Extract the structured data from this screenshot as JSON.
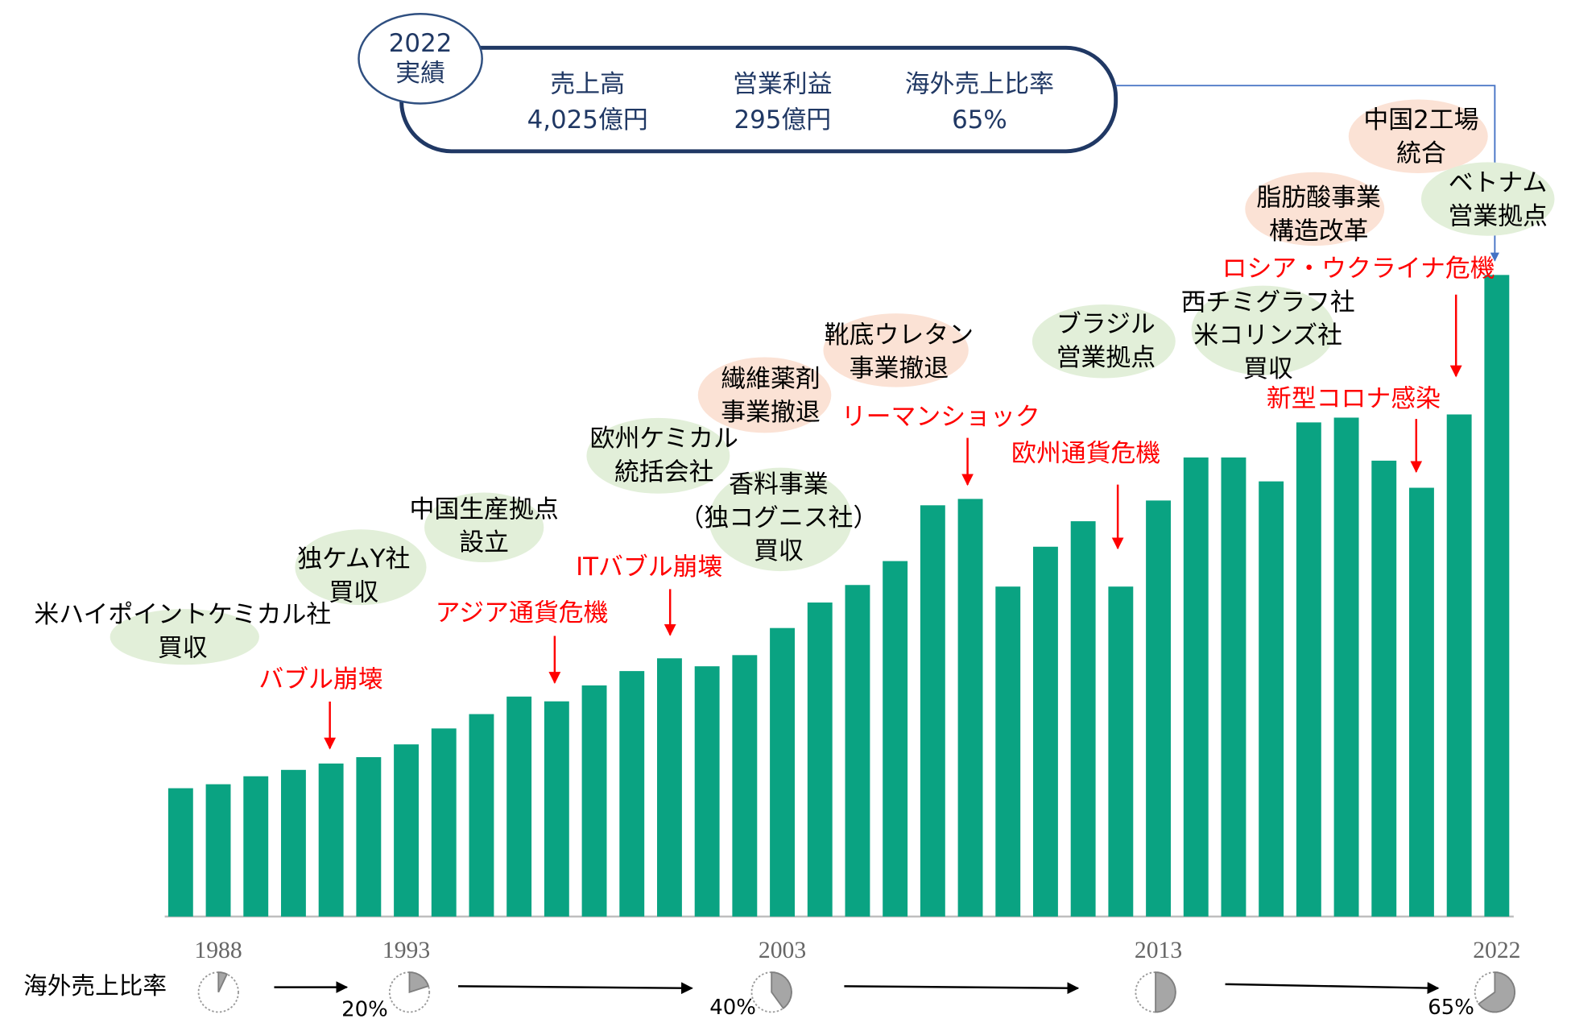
{
  "chart_data": {
    "type": "bar",
    "color": "#0aa382",
    "categories": [
      null,
      "1988",
      null,
      null,
      null,
      null,
      "1993",
      null,
      null,
      null,
      null,
      null,
      null,
      null,
      null,
      null,
      "2003",
      null,
      null,
      null,
      null,
      null,
      null,
      null,
      null,
      null,
      "2013",
      null,
      null,
      null,
      null,
      null,
      null,
      null,
      null,
      "2022"
    ],
    "values": [
      805,
      830,
      880,
      920,
      960,
      1000,
      1080,
      1180,
      1270,
      1380,
      1350,
      1450,
      1540,
      1620,
      1570,
      1640,
      1810,
      1970,
      2080,
      2230,
      2580,
      2620,
      2070,
      2320,
      2480,
      2070,
      2610,
      2880,
      2880,
      2730,
      3100,
      3130,
      2860,
      2690,
      3150,
      4025
    ],
    "ylim": [
      0,
      5750
    ],
    "summary": {
      "badge": [
        "2022",
        "実績"
      ],
      "items": [
        {
          "label": "売上高",
          "value": "4,025億円"
        },
        {
          "label": "営業利益",
          "value": "295億円"
        },
        {
          "label": "海外売上比率",
          "value": "65%"
        }
      ]
    },
    "milestones": [
      {
        "lines": [
          "米ハイポイントケミカル社",
          "買収"
        ],
        "color": "#e2efd9"
      },
      {
        "lines": [
          "独ケムY社",
          "買収"
        ],
        "color": "#e2efd9"
      },
      {
        "lines": [
          "中国生産拠点",
          "設立"
        ],
        "color": "#e2efd9"
      },
      {
        "lines": [
          "欧州ケミカル",
          "統括会社"
        ],
        "color": "#e2efd9"
      },
      {
        "lines": [
          "繊維薬剤",
          "事業撤退"
        ],
        "color": "#fbe2d5"
      },
      {
        "lines": [
          "香料事業",
          "（独コグニス社）",
          "買収"
        ],
        "color": "#e2efd9"
      },
      {
        "lines": [
          "靴底ウレタン",
          "事業撤退"
        ],
        "color": "#fbe2d5"
      },
      {
        "lines": [
          "ブラジル",
          "営業拠点"
        ],
        "color": "#e2efd9"
      },
      {
        "lines": [
          "西チミグラフ社",
          "米コリンズ社",
          "買収"
        ],
        "color": "#e2efd9"
      },
      {
        "lines": [
          "脂肪酸事業",
          "構造改革"
        ],
        "color": "#fbe2d5"
      },
      {
        "lines": [
          "中国2工場",
          "統合"
        ],
        "color": "#fbe2d5"
      },
      {
        "lines": [
          "ベトナム",
          "営業拠点"
        ],
        "color": "#e2efd9"
      }
    ],
    "crises": {
      "color": "#ff0000",
      "labels": [
        "バブル崩壊",
        "アジア通貨危機",
        "ITバブル崩壊",
        "リーマンショック",
        "欧州通貨危機",
        "新型コロナ感染",
        "ロシア・ウクライナ危機"
      ]
    },
    "overseas_ratio": {
      "label": "海外売上比率",
      "color": "#a6a6a6",
      "values": [
        7,
        20,
        40,
        50,
        65
      ],
      "value_labels": [
        null,
        "20%",
        "40%",
        null,
        "65%"
      ]
    }
  }
}
